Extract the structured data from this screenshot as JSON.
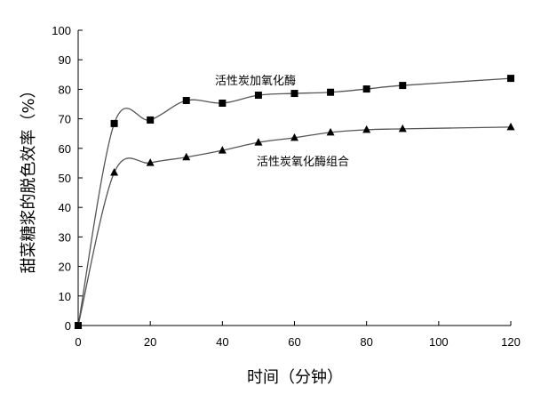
{
  "chart_data": {
    "type": "line",
    "title": "",
    "xlabel": "时间（分钟）",
    "ylabel": "甜菜糖浆的脱色效率（%）",
    "xlim": [
      0,
      120
    ],
    "ylim": [
      0,
      100
    ],
    "xticks": [
      0,
      20,
      40,
      60,
      80,
      100,
      120
    ],
    "yticks": [
      0,
      10,
      20,
      30,
      40,
      50,
      60,
      70,
      80,
      90,
      100
    ],
    "grid": false,
    "x": [
      0,
      10,
      20,
      30,
      40,
      50,
      60,
      70,
      80,
      90,
      120
    ],
    "series": [
      {
        "name": "活性炭加氧化酶",
        "marker": "square",
        "values": [
          0,
          68.4,
          69.6,
          76.2,
          75.3,
          78.0,
          78.6,
          79.0,
          80.1,
          81.3,
          83.7
        ]
      },
      {
        "name": "活性炭氧化酶组合",
        "marker": "triangle",
        "values": [
          0,
          51.8,
          55.1,
          57.0,
          59.3,
          62.0,
          63.6,
          65.4,
          66.3,
          66.6,
          67.2
        ]
      }
    ],
    "colors": {
      "line": "#555555",
      "marker": "#000000"
    }
  }
}
